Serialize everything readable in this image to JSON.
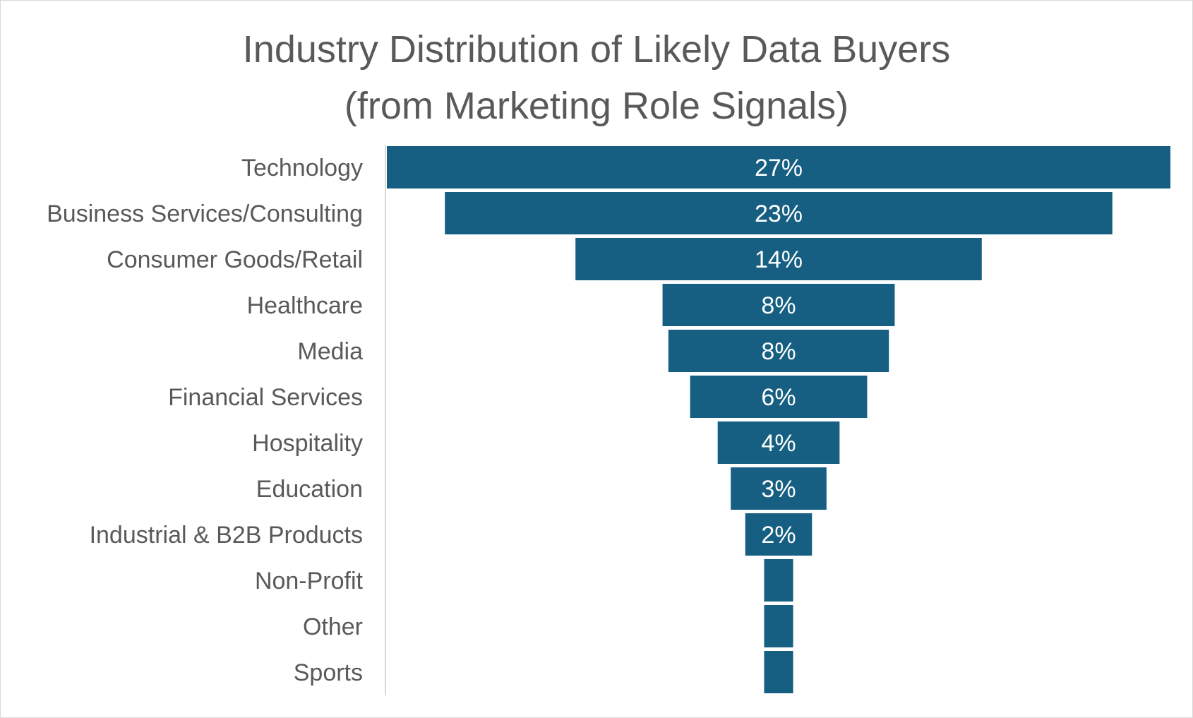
{
  "chart_data": {
    "type": "bar",
    "style": "funnel",
    "title_lines": [
      "Industry Distribution of Likely Data Buyers",
      "(from Marketing Role Signals)"
    ],
    "categories": [
      "Technology",
      "Business Services/Consulting",
      "Consumer Goods/Retail",
      "Healthcare",
      "Media",
      "Financial Services",
      "Hospitality",
      "Education",
      "Industrial & B2B Products",
      "Non-Profit",
      "Other",
      "Sports"
    ],
    "values": [
      27,
      23,
      14,
      8,
      7.6,
      6.1,
      4.2,
      3.3,
      2.3,
      1,
      1,
      1
    ],
    "data_labels": [
      "27%",
      "23%",
      "14%",
      "8%",
      "8%",
      "6%",
      "4%",
      "3%",
      "2%",
      "",
      "",
      ""
    ],
    "unit": "%",
    "bar_color": "#165f82",
    "label_color": "#595959",
    "value_label_color": "#ffffff"
  }
}
